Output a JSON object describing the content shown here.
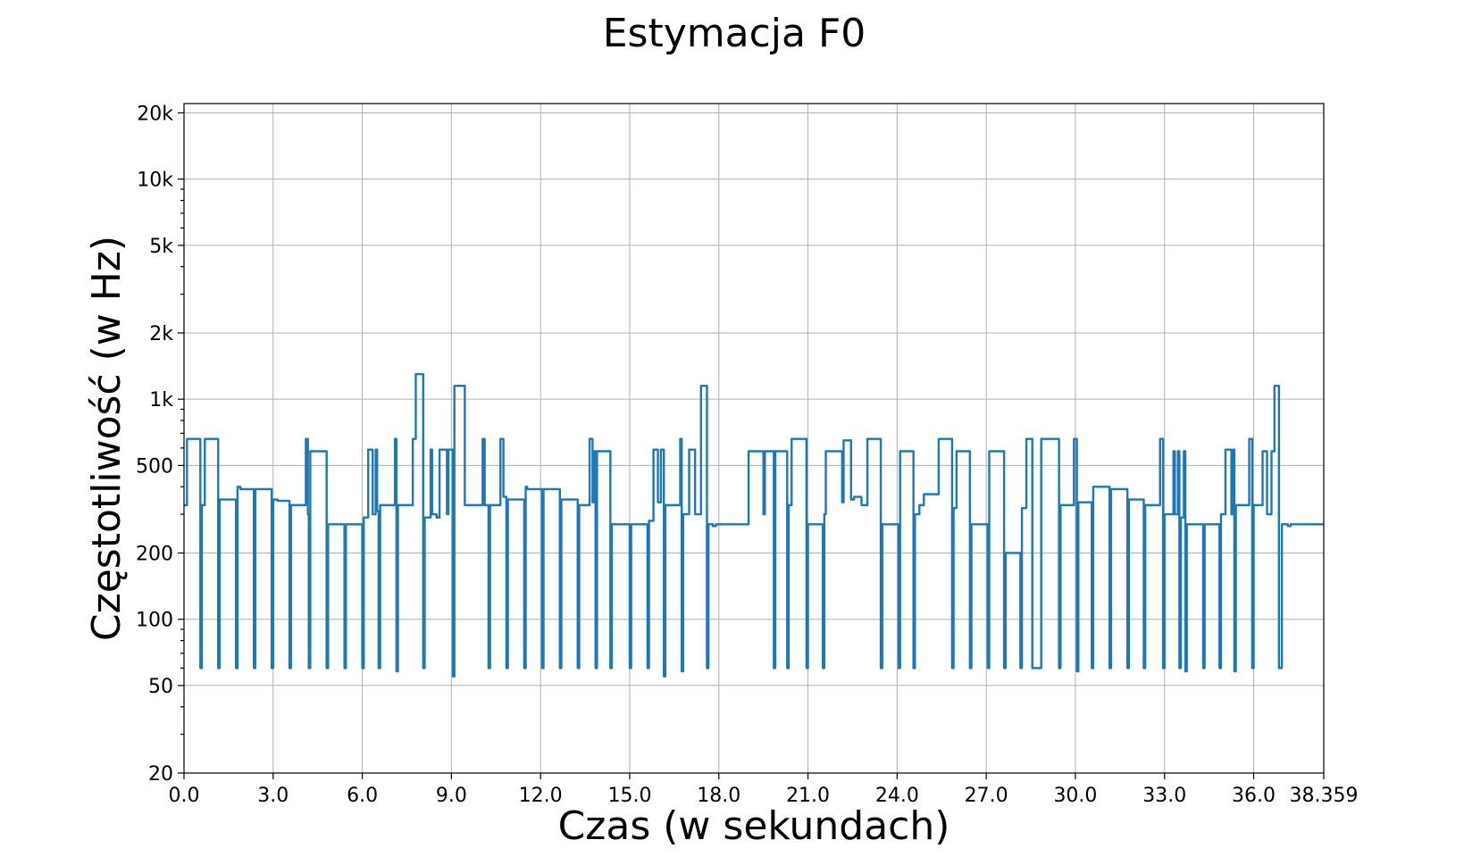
{
  "chart_data": {
    "type": "line",
    "title": "Estymacja F0",
    "xlabel": "Czas (w sekundach)",
    "ylabel": "Częstotliwość (w Hz)",
    "xlim": [
      0,
      38.359
    ],
    "ylim": [
      20,
      22050
    ],
    "yscale": "log",
    "grid": true,
    "xticks": [
      0,
      3,
      6,
      9,
      12,
      15,
      18,
      21,
      24,
      27,
      30,
      33,
      36,
      38.359
    ],
    "xtick_labels": [
      "0.0",
      "3.0",
      "6.0",
      "9.0",
      "12.0",
      "15.0",
      "18.0",
      "21.0",
      "24.0",
      "27.0",
      "30.0",
      "33.0",
      "36.0",
      "38.359"
    ],
    "yticks": [
      20,
      50,
      100,
      200,
      500,
      1000,
      2000,
      5000,
      10000,
      20000
    ],
    "ytick_labels": [
      "20",
      "50",
      "100",
      "200",
      "500",
      "1k",
      "2k",
      "5k",
      "10k",
      "20k"
    ],
    "series": [
      {
        "color": "#1f77b4",
        "steps": [
          [
            0.0,
            330
          ],
          [
            0.1,
            660
          ],
          [
            0.55,
            60
          ],
          [
            0.6,
            330
          ],
          [
            0.7,
            660
          ],
          [
            1.15,
            60
          ],
          [
            1.2,
            350
          ],
          [
            1.75,
            60
          ],
          [
            1.8,
            400
          ],
          [
            1.9,
            390
          ],
          [
            2.35,
            60
          ],
          [
            2.4,
            390
          ],
          [
            2.95,
            60
          ],
          [
            3.0,
            350
          ],
          [
            3.15,
            345
          ],
          [
            3.55,
            60
          ],
          [
            3.6,
            330
          ],
          [
            4.1,
            660
          ],
          [
            4.17,
            300
          ],
          [
            4.2,
            60
          ],
          [
            4.25,
            580
          ],
          [
            4.8,
            60
          ],
          [
            4.85,
            270
          ],
          [
            5.4,
            60
          ],
          [
            5.45,
            270
          ],
          [
            6.0,
            60
          ],
          [
            6.05,
            290
          ],
          [
            6.2,
            590
          ],
          [
            6.35,
            300
          ],
          [
            6.45,
            590
          ],
          [
            6.5,
            310
          ],
          [
            6.55,
            60
          ],
          [
            6.6,
            330
          ],
          [
            7.1,
            660
          ],
          [
            7.15,
            58
          ],
          [
            7.2,
            330
          ],
          [
            7.7,
            660
          ],
          [
            7.8,
            1300
          ],
          [
            8.05,
            60
          ],
          [
            8.1,
            290
          ],
          [
            8.3,
            590
          ],
          [
            8.35,
            300
          ],
          [
            8.5,
            290
          ],
          [
            8.6,
            590
          ],
          [
            8.85,
            300
          ],
          [
            8.9,
            590
          ],
          [
            9.05,
            55
          ],
          [
            9.1,
            1150
          ],
          [
            9.45,
            330
          ],
          [
            9.55,
            330
          ],
          [
            10.05,
            660
          ],
          [
            10.12,
            330
          ],
          [
            10.25,
            60
          ],
          [
            10.3,
            330
          ],
          [
            10.65,
            660
          ],
          [
            10.75,
            360
          ],
          [
            10.85,
            60
          ],
          [
            10.9,
            350
          ],
          [
            11.45,
            60
          ],
          [
            11.5,
            400
          ],
          [
            11.55,
            390
          ],
          [
            12.05,
            60
          ],
          [
            12.1,
            390
          ],
          [
            12.65,
            60
          ],
          [
            12.7,
            350
          ],
          [
            13.25,
            60
          ],
          [
            13.3,
            330
          ],
          [
            13.65,
            660
          ],
          [
            13.75,
            340
          ],
          [
            13.8,
            580
          ],
          [
            13.85,
            60
          ],
          [
            13.9,
            580
          ],
          [
            14.35,
            60
          ],
          [
            14.4,
            270
          ],
          [
            15.0,
            60
          ],
          [
            15.05,
            270
          ],
          [
            15.6,
            60
          ],
          [
            15.65,
            280
          ],
          [
            15.8,
            590
          ],
          [
            15.95,
            340
          ],
          [
            16.05,
            590
          ],
          [
            16.15,
            55
          ],
          [
            16.2,
            330
          ],
          [
            16.7,
            660
          ],
          [
            16.75,
            58
          ],
          [
            16.8,
            300
          ],
          [
            17.0,
            590
          ],
          [
            17.2,
            300
          ],
          [
            17.4,
            1150
          ],
          [
            17.6,
            60
          ],
          [
            17.65,
            270
          ],
          [
            17.8,
            265
          ],
          [
            17.9,
            270
          ],
          [
            19.0,
            580
          ],
          [
            19.5,
            300
          ],
          [
            19.55,
            580
          ],
          [
            19.85,
            60
          ],
          [
            19.9,
            580
          ],
          [
            20.3,
            60
          ],
          [
            20.35,
            330
          ],
          [
            20.45,
            660
          ],
          [
            20.95,
            60
          ],
          [
            21.0,
            270
          ],
          [
            21.5,
            60
          ],
          [
            21.55,
            300
          ],
          [
            21.6,
            580
          ],
          [
            22.15,
            340
          ],
          [
            22.2,
            650
          ],
          [
            22.45,
            350
          ],
          [
            22.55,
            360
          ],
          [
            22.8,
            330
          ],
          [
            23.0,
            660
          ],
          [
            23.45,
            60
          ],
          [
            23.5,
            270
          ],
          [
            24.05,
            60
          ],
          [
            24.1,
            580
          ],
          [
            24.55,
            60
          ],
          [
            24.6,
            300
          ],
          [
            24.75,
            330
          ],
          [
            24.9,
            370
          ],
          [
            25.3,
            370
          ],
          [
            25.4,
            660
          ],
          [
            25.85,
            60
          ],
          [
            25.9,
            320
          ],
          [
            26.0,
            580
          ],
          [
            26.45,
            60
          ],
          [
            26.5,
            270
          ],
          [
            27.05,
            60
          ],
          [
            27.1,
            580
          ],
          [
            27.6,
            60
          ],
          [
            27.65,
            200
          ],
          [
            28.15,
            60
          ],
          [
            28.2,
            320
          ],
          [
            28.35,
            660
          ],
          [
            28.55,
            60
          ],
          [
            28.85,
            660
          ],
          [
            29.45,
            60
          ],
          [
            29.5,
            330
          ],
          [
            29.95,
            660
          ],
          [
            30.05,
            58
          ],
          [
            30.1,
            340
          ],
          [
            30.55,
            60
          ],
          [
            30.6,
            400
          ],
          [
            31.15,
            60
          ],
          [
            31.2,
            390
          ],
          [
            31.75,
            60
          ],
          [
            31.8,
            350
          ],
          [
            32.3,
            60
          ],
          [
            32.35,
            330
          ],
          [
            32.85,
            660
          ],
          [
            32.95,
            60
          ],
          [
            33.0,
            300
          ],
          [
            33.3,
            580
          ],
          [
            33.35,
            300
          ],
          [
            33.45,
            580
          ],
          [
            33.5,
            60
          ],
          [
            33.55,
            290
          ],
          [
            33.65,
            580
          ],
          [
            33.7,
            58
          ],
          [
            33.75,
            270
          ],
          [
            34.3,
            60
          ],
          [
            34.35,
            270
          ],
          [
            34.85,
            60
          ],
          [
            34.9,
            300
          ],
          [
            35.05,
            590
          ],
          [
            35.25,
            300
          ],
          [
            35.3,
            590
          ],
          [
            35.35,
            58
          ],
          [
            35.4,
            330
          ],
          [
            35.85,
            660
          ],
          [
            35.95,
            60
          ],
          [
            36.0,
            330
          ],
          [
            36.3,
            580
          ],
          [
            36.45,
            300
          ],
          [
            36.6,
            580
          ],
          [
            36.7,
            1150
          ],
          [
            36.85,
            60
          ],
          [
            36.95,
            270
          ],
          [
            37.15,
            265
          ],
          [
            37.25,
            270
          ]
        ],
        "x_end": 38.359
      }
    ]
  }
}
